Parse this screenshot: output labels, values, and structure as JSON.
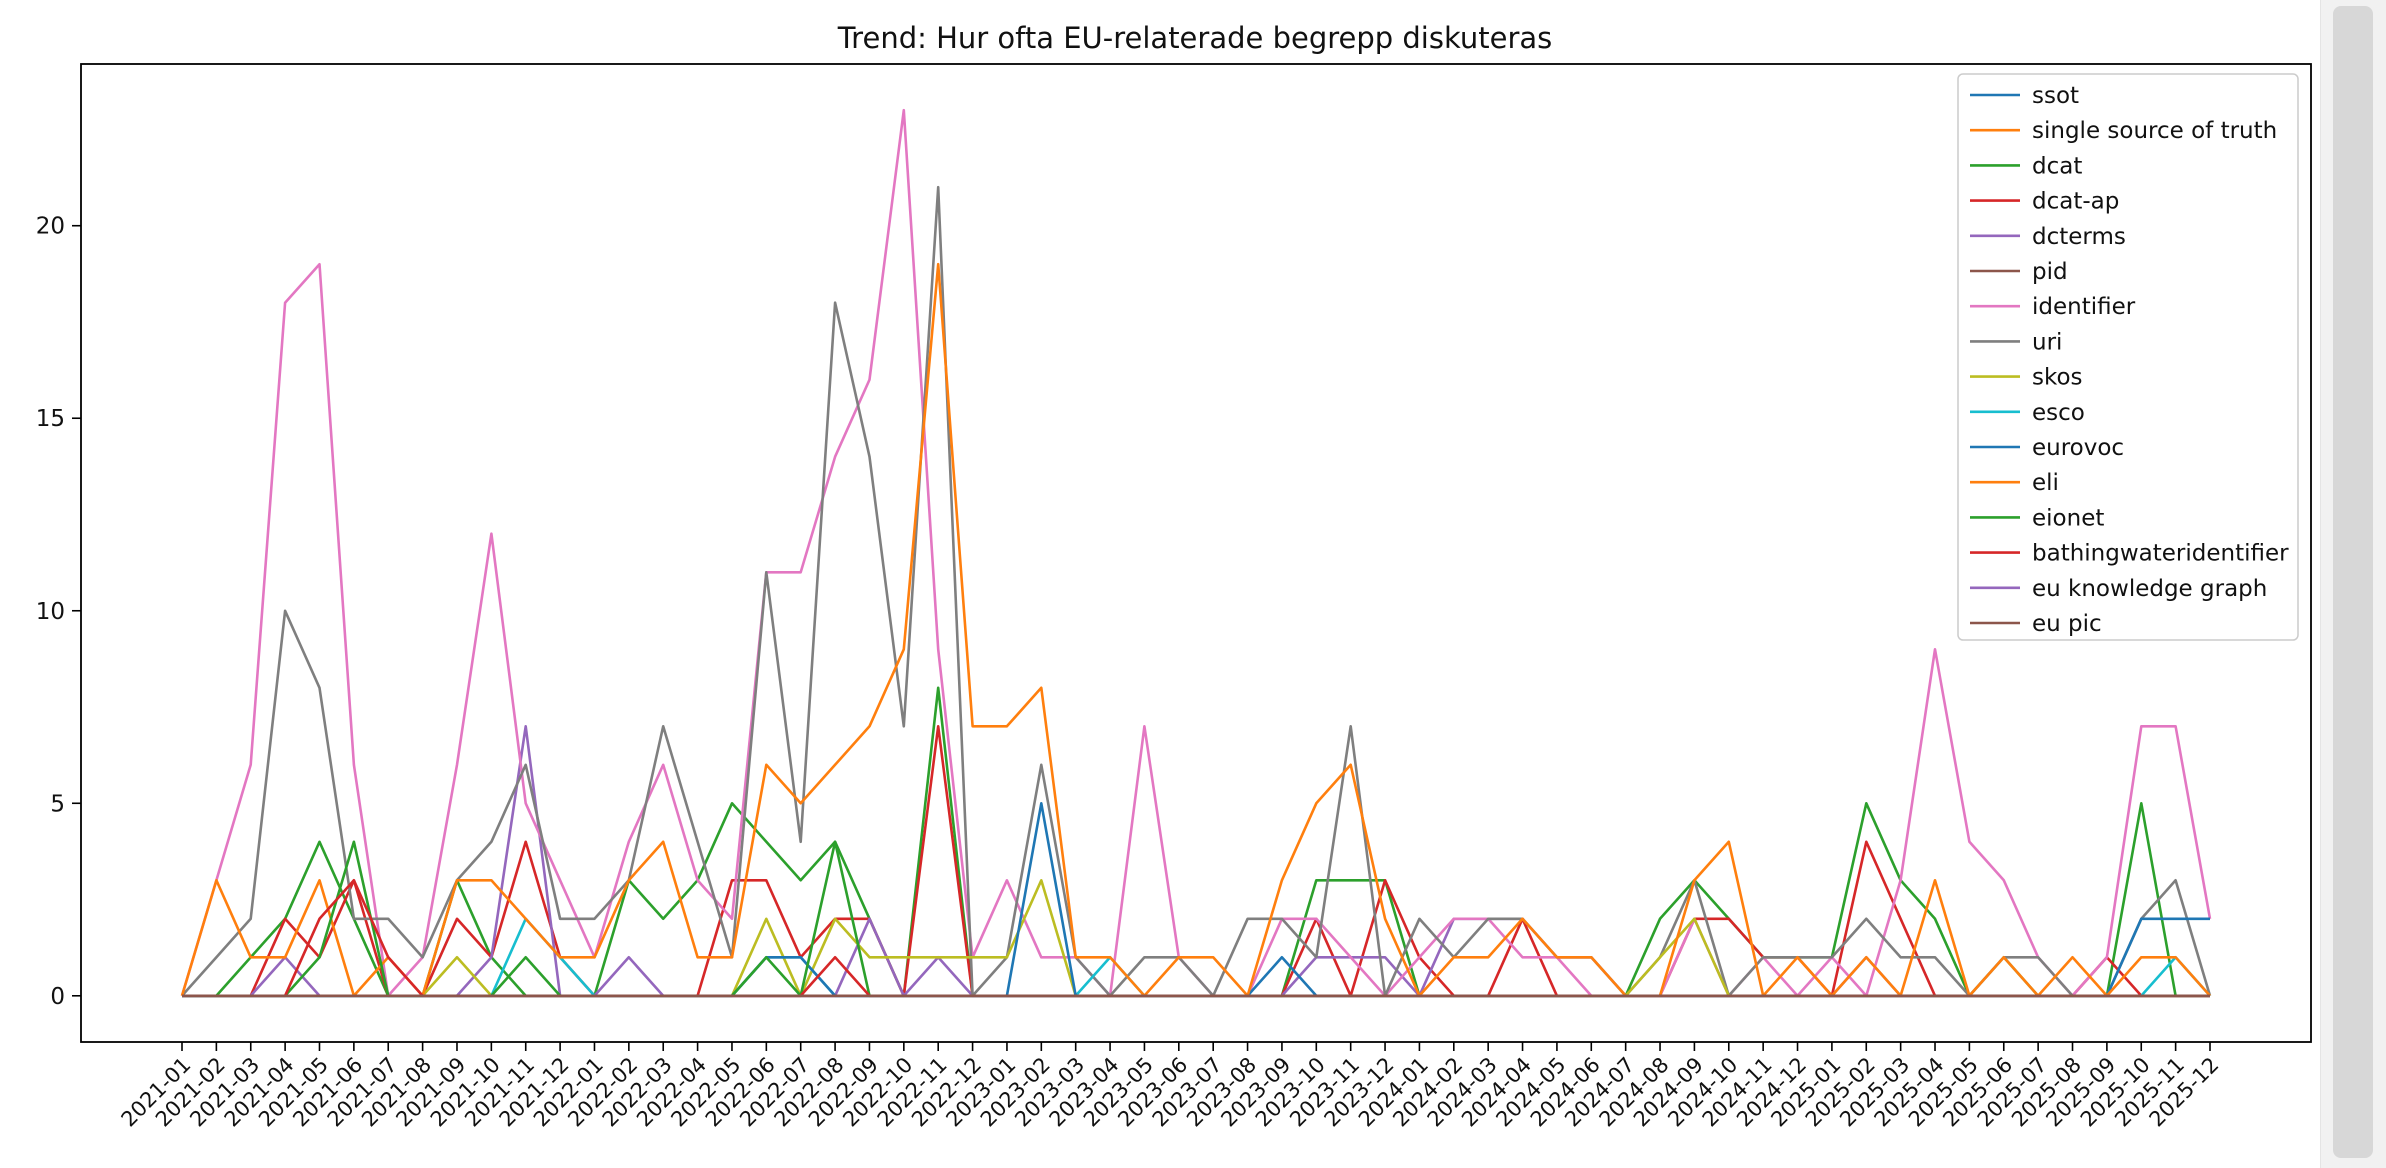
{
  "chart_data": {
    "type": "line",
    "title": "Trend: Hur ofta EU-relaterade begrepp diskuteras",
    "xlabel": "",
    "ylabel": "",
    "ylim": [
      -1.2,
      24.2
    ],
    "yticks": [
      0,
      5,
      10,
      15,
      20
    ],
    "grid": false,
    "legend_position": "top-right",
    "x": [
      "2021-01",
      "2021-02",
      "2021-03",
      "2021-04",
      "2021-05",
      "2021-06",
      "2021-07",
      "2021-08",
      "2021-09",
      "2021-10",
      "2021-11",
      "2021-12",
      "2022-01",
      "2022-02",
      "2022-03",
      "2022-04",
      "2022-05",
      "2022-06",
      "2022-07",
      "2022-08",
      "2022-09",
      "2022-10",
      "2022-11",
      "2022-12",
      "2023-01",
      "2023-02",
      "2023-03",
      "2023-04",
      "2023-05",
      "2023-06",
      "2023-07",
      "2023-08",
      "2023-09",
      "2023-10",
      "2023-11",
      "2023-12",
      "2024-01",
      "2024-02",
      "2024-03",
      "2024-04",
      "2024-05",
      "2024-06",
      "2024-07",
      "2024-08",
      "2024-09",
      "2024-10",
      "2024-11",
      "2024-12",
      "2025-01",
      "2025-02",
      "2025-03",
      "2025-04",
      "2025-05",
      "2025-06",
      "2025-07",
      "2025-08",
      "2025-09",
      "2025-10",
      "2025-11",
      "2025-12"
    ],
    "series": [
      {
        "name": "ssot",
        "color": "#1f77b4",
        "values": [
          0,
          0,
          0,
          0,
          0,
          0,
          0,
          0,
          0,
          0,
          0,
          0,
          0,
          0,
          0,
          0,
          0,
          0,
          0,
          0,
          0,
          0,
          0,
          0,
          0,
          0,
          0,
          0,
          0,
          0,
          0,
          0,
          0,
          0,
          0,
          0,
          0,
          0,
          0,
          0,
          0,
          0,
          0,
          0,
          0,
          0,
          0,
          0,
          0,
          0,
          0,
          0,
          0,
          0,
          0,
          0,
          0,
          0,
          0,
          0
        ]
      },
      {
        "name": "single source of truth",
        "color": "#ff7f0e",
        "values": [
          0,
          0,
          0,
          0,
          0,
          0,
          0,
          0,
          0,
          0,
          0,
          0,
          0,
          0,
          0,
          0,
          0,
          0,
          0,
          0,
          0,
          0,
          0,
          0,
          0,
          0,
          0,
          0,
          0,
          0,
          0,
          0,
          0,
          0,
          0,
          0,
          0,
          0,
          0,
          0,
          0,
          0,
          0,
          0,
          0,
          0,
          0,
          0,
          0,
          0,
          0,
          0,
          0,
          0,
          0,
          0,
          0,
          0,
          0,
          0
        ]
      },
      {
        "name": "dcat",
        "color": "#2ca02c",
        "values": [
          0,
          0,
          1,
          2,
          4,
          2,
          0,
          0,
          3,
          1,
          0,
          0,
          0,
          3,
          2,
          3,
          5,
          4,
          3,
          4,
          2,
          0,
          8,
          0,
          0,
          0,
          0,
          0,
          0,
          0,
          0,
          0,
          0,
          3,
          3,
          3,
          0,
          0,
          0,
          0,
          0,
          0,
          0,
          2,
          3,
          2,
          1,
          1,
          1,
          5,
          3,
          2,
          0,
          1,
          0,
          0,
          0,
          5,
          0,
          0
        ]
      },
      {
        "name": "dcat-ap",
        "color": "#d62728",
        "values": [
          0,
          0,
          0,
          2,
          1,
          3,
          0,
          0,
          2,
          1,
          4,
          1,
          0,
          0,
          0,
          0,
          3,
          3,
          1,
          2,
          2,
          0,
          7,
          0,
          0,
          0,
          0,
          0,
          0,
          0,
          0,
          0,
          0,
          2,
          0,
          3,
          1,
          0,
          0,
          2,
          0,
          0,
          0,
          0,
          2,
          2,
          1,
          1,
          0,
          4,
          2,
          0,
          0,
          0,
          0,
          0,
          1,
          0,
          0,
          0
        ]
      },
      {
        "name": "dcterms",
        "color": "#9467bd",
        "values": [
          0,
          0,
          0,
          1,
          0,
          0,
          0,
          0,
          0,
          1,
          7,
          0,
          0,
          1,
          0,
          0,
          0,
          0,
          0,
          0,
          2,
          0,
          1,
          0,
          0,
          0,
          0,
          0,
          0,
          0,
          0,
          0,
          0,
          1,
          1,
          1,
          0,
          2,
          2,
          2,
          1,
          1,
          0,
          0,
          0,
          0,
          0,
          0,
          0,
          1,
          0,
          0,
          0,
          0,
          0,
          0,
          0,
          0,
          0,
          0
        ]
      },
      {
        "name": "pid",
        "color": "#8c564b",
        "values": [
          0,
          0,
          0,
          0,
          0,
          0,
          0,
          0,
          0,
          0,
          0,
          0,
          0,
          0,
          0,
          0,
          0,
          0,
          0,
          0,
          0,
          0,
          0,
          0,
          0,
          0,
          0,
          0,
          0,
          0,
          0,
          0,
          0,
          0,
          0,
          0,
          0,
          0,
          0,
          0,
          0,
          0,
          0,
          0,
          0,
          0,
          0,
          0,
          0,
          0,
          0,
          0,
          0,
          0,
          0,
          0,
          0,
          0,
          0,
          0
        ]
      },
      {
        "name": "identifier",
        "color": "#e377c2",
        "values": [
          0,
          3,
          6,
          18,
          19,
          6,
          0,
          1,
          6,
          12,
          5,
          3,
          1,
          4,
          6,
          3,
          2,
          11,
          11,
          14,
          16,
          23,
          9,
          1,
          3,
          1,
          1,
          0,
          7,
          1,
          0,
          0,
          2,
          2,
          1,
          0,
          1,
          2,
          2,
          1,
          1,
          0,
          0,
          0,
          2,
          0,
          1,
          0,
          1,
          0,
          3,
          9,
          4,
          3,
          1,
          0,
          1,
          7,
          7,
          2
        ]
      },
      {
        "name": "uri",
        "color": "#7f7f7f",
        "values": [
          0,
          1,
          2,
          10,
          8,
          2,
          2,
          1,
          3,
          4,
          6,
          2,
          2,
          3,
          7,
          4,
          1,
          11,
          4,
          18,
          14,
          7,
          21,
          0,
          1,
          6,
          1,
          0,
          1,
          1,
          0,
          2,
          2,
          1,
          7,
          0,
          2,
          1,
          2,
          2,
          1,
          1,
          0,
          1,
          3,
          0,
          1,
          1,
          1,
          2,
          1,
          1,
          0,
          1,
          1,
          0,
          0,
          2,
          3,
          0
        ]
      },
      {
        "name": "skos",
        "color": "#bcbd22",
        "values": [
          0,
          0,
          0,
          0,
          0,
          0,
          0,
          0,
          1,
          0,
          0,
          0,
          0,
          0,
          0,
          0,
          0,
          2,
          0,
          2,
          1,
          1,
          1,
          1,
          1,
          3,
          0,
          0,
          0,
          0,
          0,
          0,
          0,
          0,
          0,
          0,
          0,
          0,
          0,
          0,
          0,
          0,
          0,
          1,
          2,
          0,
          0,
          0,
          0,
          0,
          0,
          0,
          0,
          0,
          0,
          0,
          0,
          0,
          0,
          0
        ]
      },
      {
        "name": "esco",
        "color": "#17becf",
        "values": [
          0,
          0,
          0,
          0,
          0,
          0,
          0,
          0,
          0,
          0,
          2,
          1,
          0,
          0,
          0,
          0,
          0,
          1,
          1,
          0,
          0,
          0,
          0,
          0,
          0,
          0,
          0,
          1,
          0,
          0,
          0,
          0,
          0,
          0,
          0,
          0,
          0,
          0,
          0,
          0,
          0,
          0,
          0,
          0,
          0,
          0,
          0,
          0,
          0,
          0,
          0,
          0,
          0,
          0,
          0,
          0,
          0,
          0,
          1,
          0
        ]
      },
      {
        "name": "eurovoc",
        "color": "#1f77b4",
        "values": [
          0,
          0,
          0,
          0,
          0,
          0,
          0,
          0,
          0,
          0,
          0,
          0,
          0,
          0,
          0,
          0,
          0,
          1,
          1,
          0,
          0,
          0,
          0,
          0,
          0,
          5,
          0,
          0,
          0,
          0,
          0,
          0,
          1,
          0,
          0,
          0,
          0,
          0,
          0,
          0,
          0,
          0,
          0,
          0,
          0,
          0,
          0,
          0,
          0,
          0,
          0,
          0,
          0,
          0,
          0,
          0,
          0,
          2,
          2,
          2
        ]
      },
      {
        "name": "eli",
        "color": "#ff7f0e",
        "values": [
          0,
          3,
          1,
          1,
          3,
          0,
          1,
          0,
          3,
          3,
          2,
          1,
          1,
          3,
          4,
          1,
          1,
          6,
          5,
          6,
          7,
          9,
          19,
          7,
          7,
          8,
          1,
          1,
          0,
          1,
          1,
          0,
          3,
          5,
          6,
          2,
          0,
          1,
          1,
          2,
          1,
          1,
          0,
          0,
          3,
          4,
          0,
          1,
          0,
          1,
          0,
          3,
          0,
          1,
          0,
          1,
          0,
          1,
          1,
          0
        ]
      },
      {
        "name": "eionet",
        "color": "#2ca02c",
        "values": [
          0,
          0,
          0,
          0,
          1,
          4,
          0,
          0,
          0,
          0,
          1,
          0,
          0,
          0,
          0,
          0,
          0,
          1,
          0,
          4,
          0,
          0,
          0,
          0,
          0,
          0,
          0,
          0,
          0,
          0,
          0,
          0,
          0,
          0,
          0,
          0,
          0,
          0,
          0,
          0,
          0,
          0,
          0,
          0,
          0,
          0,
          0,
          0,
          0,
          0,
          0,
          0,
          0,
          0,
          0,
          0,
          0,
          0,
          0,
          0
        ]
      },
      {
        "name": "bathingwateridentifier",
        "color": "#d62728",
        "values": [
          0,
          0,
          0,
          0,
          2,
          3,
          1,
          0,
          0,
          0,
          0,
          0,
          0,
          0,
          0,
          0,
          0,
          0,
          0,
          1,
          0,
          0,
          0,
          0,
          0,
          0,
          0,
          0,
          0,
          0,
          0,
          0,
          0,
          0,
          0,
          0,
          0,
          0,
          0,
          0,
          0,
          0,
          0,
          0,
          0,
          0,
          0,
          0,
          0,
          0,
          0,
          0,
          0,
          0,
          0,
          0,
          0,
          0,
          0,
          0
        ]
      },
      {
        "name": "eu knowledge graph",
        "color": "#9467bd",
        "values": [
          0,
          0,
          0,
          0,
          0,
          0,
          0,
          0,
          0,
          0,
          0,
          0,
          0,
          0,
          0,
          0,
          0,
          0,
          0,
          0,
          0,
          0,
          0,
          0,
          0,
          0,
          0,
          0,
          0,
          0,
          0,
          0,
          0,
          0,
          0,
          0,
          0,
          0,
          0,
          0,
          0,
          0,
          0,
          0,
          0,
          0,
          0,
          0,
          0,
          0,
          0,
          0,
          0,
          0,
          0,
          0,
          0,
          0,
          0,
          0
        ]
      },
      {
        "name": "eu pic",
        "color": "#8c564b",
        "values": [
          0,
          0,
          0,
          0,
          0,
          0,
          0,
          0,
          0,
          0,
          0,
          0,
          0,
          0,
          0,
          0,
          0,
          0,
          0,
          0,
          0,
          0,
          0,
          0,
          0,
          0,
          0,
          0,
          0,
          0,
          0,
          0,
          0,
          0,
          0,
          0,
          0,
          0,
          0,
          0,
          0,
          0,
          0,
          0,
          0,
          0,
          0,
          0,
          0,
          0,
          0,
          0,
          0,
          0,
          0,
          0,
          0,
          0,
          0,
          0
        ]
      }
    ]
  }
}
